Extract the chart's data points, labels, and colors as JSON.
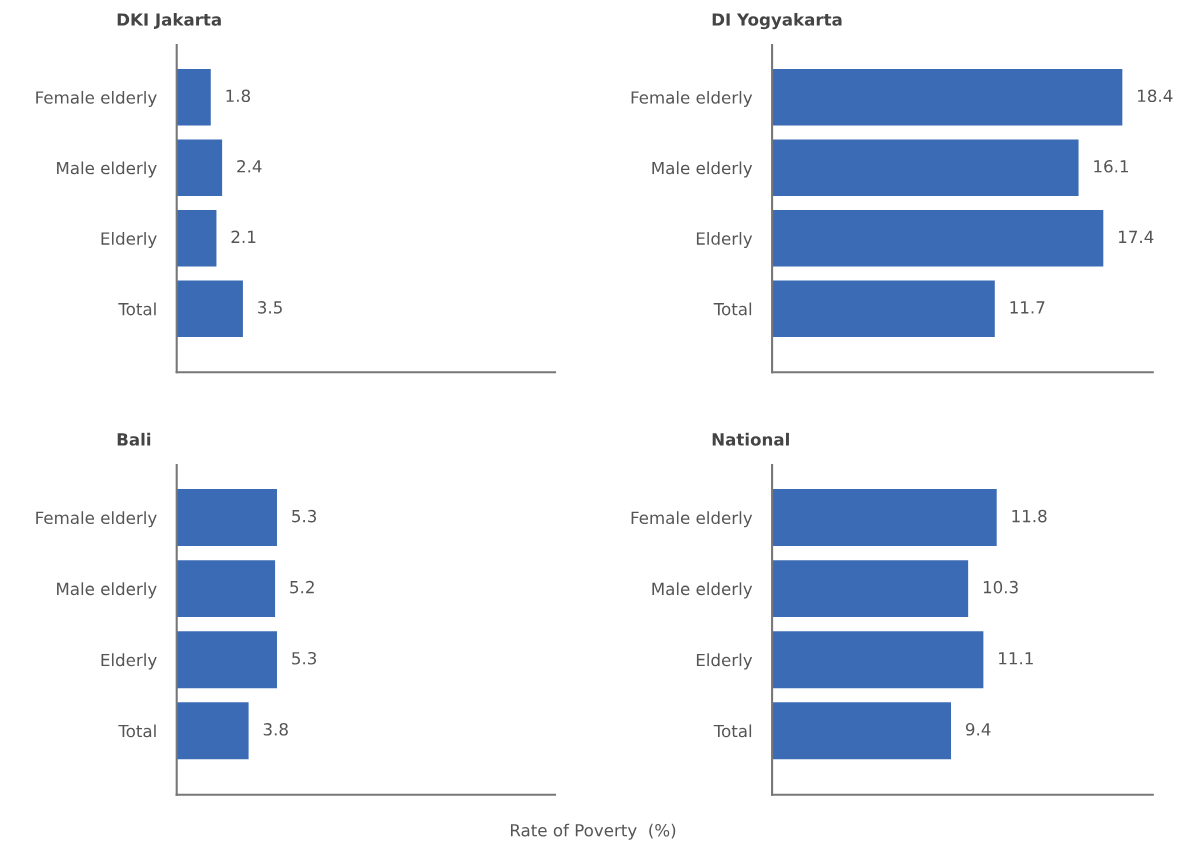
{
  "chart_data": [
    {
      "type": "bar",
      "orientation": "horizontal",
      "title": "DKI Jakarta",
      "categories": [
        "Female elderly",
        "Male elderly",
        "Elderly",
        "Total"
      ],
      "values": [
        1.8,
        2.4,
        2.1,
        3.5
      ],
      "color": "#3b6bb5",
      "xlim": [
        0,
        20
      ],
      "tick_labels": "y",
      "data_labels": true
    },
    {
      "type": "bar",
      "orientation": "horizontal",
      "title": "DI Yogyakarta",
      "categories": [
        "Female elderly",
        "Male elderly",
        "Elderly",
        "Total"
      ],
      "values": [
        18.4,
        16.1,
        17.4,
        11.7
      ],
      "color": "#3b6bb5",
      "xlim": [
        0,
        20
      ],
      "tick_labels": "y",
      "data_labels": true
    },
    {
      "type": "bar",
      "orientation": "horizontal",
      "title": "Bali",
      "categories": [
        "Female elderly",
        "Male elderly",
        "Elderly",
        "Total"
      ],
      "values": [
        5.3,
        5.2,
        5.3,
        3.8
      ],
      "color": "#3b6bb5",
      "xlim": [
        0,
        20
      ],
      "tick_labels": "y",
      "data_labels": true,
      "xlabel": "Rate of Poverty  (%)"
    },
    {
      "type": "bar",
      "orientation": "horizontal",
      "title": "National",
      "categories": [
        "Female elderly",
        "Male elderly",
        "Elderly",
        "Total"
      ],
      "values": [
        11.8,
        10.3,
        11.1,
        9.4
      ],
      "color": "#3b6bb5",
      "xlim": [
        0,
        20
      ],
      "tick_labels": "y",
      "data_labels": true
    }
  ]
}
